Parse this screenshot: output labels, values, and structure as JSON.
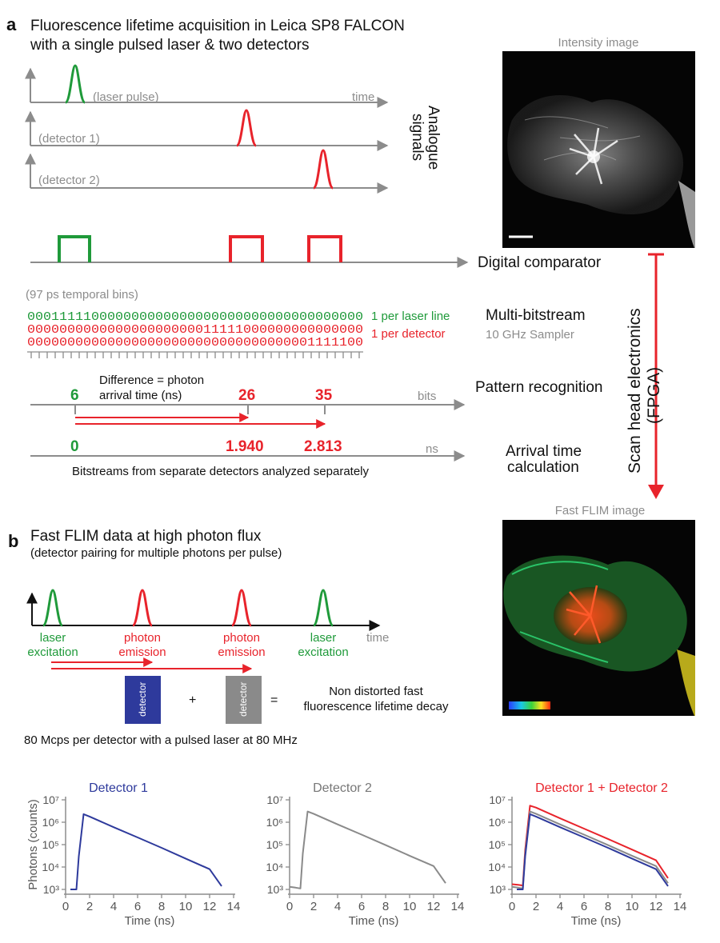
{
  "panel_a": {
    "letter": "a",
    "title_line1": "Fluorescence lifetime acquisition in Leica SP8 FALCON",
    "title_line2": "with a single pulsed laser & two detectors",
    "laser_pulse_label": "(laser pulse)",
    "time_label": "time",
    "detector1_label": "(detector 1)",
    "detector2_label": "(detector 2)",
    "analogue_label_line1": "Analogue",
    "analogue_label_line2": "signals",
    "digital_comparator": "Digital comparator",
    "temporal_bins": "(97 ps temporal bins)",
    "bitstream_green": "000111110000000000000000000000000000000000",
    "bitstream_red1": "000000000000000000000011111000000000000000",
    "bitstream_red2": "000000000000000000000000000000000001111100",
    "per_laser_line": "1 per laser line",
    "per_detector": "1 per detector",
    "multi_bitstream": "Multi-bitstream",
    "sampler": "10 GHz Sampler",
    "difference_line1": "Difference = photon",
    "difference_line2": "arrival time (ns)",
    "bit_6": "6",
    "bit_26": "26",
    "bit_35": "35",
    "bits_label": "bits",
    "pattern_recognition": "Pattern recognition",
    "ns_0": "0",
    "ns_1940": "1.940",
    "ns_2813": "2.813",
    "ns_label": "ns",
    "arrival_line1": "Arrival time",
    "arrival_line2": "calculation",
    "separate_note": "Bitstreams from separate detectors analyzed separately",
    "scan_head_line1": "Scan head electronics",
    "scan_head_line2": "(FPGA)",
    "intensity_image_label": "Intensity image",
    "fast_flim_image_label": "Fast FLIM image"
  },
  "panel_b": {
    "letter": "b",
    "title": "Fast FLIM data at high photon flux",
    "subtitle": "(detector pairing for multiple photons per pulse)",
    "laser1_line1": "laser",
    "laser1_line2": "excitation",
    "photon1_line1": "photon",
    "photon1_line2": "emission",
    "photon2_line1": "photon",
    "photon2_line2": "emission",
    "laser2_line1": "laser",
    "laser2_line2": "excitation",
    "time_label": "time",
    "detector_box_text": "detector",
    "plus": "+",
    "equals": "=",
    "result_line1": "Non distorted fast",
    "result_line2": "fluorescence lifetime decay",
    "mcps_note": "80 Mcps per detector with a pulsed laser at 80 MHz"
  },
  "colors": {
    "green": "#1f9a3a",
    "red": "#e8232b",
    "blue": "#2e3a9c",
    "gray": "#8a8a8a",
    "axis_gray": "#8c8c8c"
  },
  "chart_data": [
    {
      "type": "line",
      "title": "Detector 1",
      "xlabel": "Time (ns)",
      "ylabel": "Photons (counts)",
      "y_scale": "log",
      "xlim": [
        0,
        14
      ],
      "ylim": [
        1000,
        10000000
      ],
      "x_ticks": [
        "0",
        "2",
        "4",
        "6",
        "8",
        "10",
        "12",
        "14"
      ],
      "y_ticks": [
        "10³",
        "10⁴",
        "10⁵",
        "10⁶",
        "10⁷"
      ],
      "series": [
        {
          "color": "#2e3a9c",
          "x": [
            0.4,
            0.9,
            1.1,
            1.5,
            2,
            4,
            6,
            8,
            10,
            12,
            13
          ],
          "y": [
            1000,
            1000,
            30000,
            2300000,
            1800000,
            600000,
            210000,
            72000,
            24000,
            8000,
            1400
          ]
        }
      ]
    },
    {
      "type": "line",
      "title": "Detector 2",
      "xlabel": "Time (ns)",
      "ylabel": "",
      "y_scale": "log",
      "xlim": [
        0,
        14
      ],
      "ylim": [
        1000,
        10000000
      ],
      "x_ticks": [
        "0",
        "2",
        "4",
        "6",
        "8",
        "10",
        "12",
        "14"
      ],
      "y_ticks": [
        "10³",
        "10⁴",
        "10⁵",
        "10⁶",
        "10⁷"
      ],
      "series": [
        {
          "color": "#8a8a8a",
          "x": [
            0,
            0.5,
            0.9,
            1.1,
            1.5,
            2,
            4,
            6,
            8,
            10,
            12,
            13
          ],
          "y": [
            1300,
            1200,
            1100,
            40000,
            3000000,
            2400000,
            800000,
            280000,
            95000,
            32000,
            11000,
            1900
          ]
        }
      ]
    },
    {
      "type": "line",
      "title": "Detector 1 + Detector 2",
      "xlabel": "Time (ns)",
      "ylabel": "",
      "y_scale": "log",
      "xlim": [
        0,
        14
      ],
      "ylim": [
        1000,
        10000000
      ],
      "x_ticks": [
        "0",
        "2",
        "4",
        "6",
        "8",
        "10",
        "12",
        "14"
      ],
      "y_ticks": [
        "10³",
        "10⁴",
        "10⁵",
        "10⁶",
        "10⁷"
      ],
      "series": [
        {
          "color": "#e8232b",
          "x": [
            0,
            0.5,
            0.9,
            1.1,
            1.5,
            2,
            4,
            6,
            8,
            10,
            12,
            13
          ],
          "y": [
            1700,
            1600,
            1500,
            60000,
            5500000,
            4500000,
            1500000,
            520000,
            180000,
            60000,
            20000,
            3200
          ]
        },
        {
          "color": "#8a8a8a",
          "x": [
            0,
            0.5,
            0.9,
            1.1,
            1.5,
            2,
            4,
            6,
            8,
            10,
            12,
            13
          ],
          "y": [
            1300,
            1200,
            1100,
            40000,
            3000000,
            2400000,
            800000,
            280000,
            95000,
            32000,
            11000,
            1900
          ]
        },
        {
          "color": "#2e3a9c",
          "x": [
            0.4,
            0.9,
            1.1,
            1.5,
            2,
            4,
            6,
            8,
            10,
            12,
            13
          ],
          "y": [
            1000,
            1000,
            30000,
            2300000,
            1800000,
            600000,
            210000,
            72000,
            24000,
            8000,
            1400
          ]
        }
      ]
    }
  ]
}
